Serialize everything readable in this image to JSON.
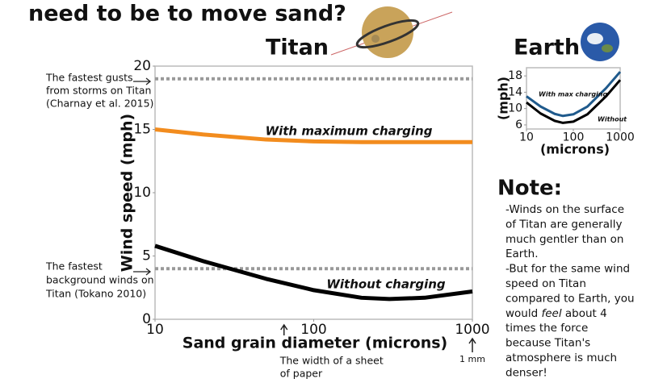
{
  "header": {
    "title": "need to be to move sand?",
    "titan_label": "Titan",
    "earth_label": "Earth"
  },
  "chart_data": [
    {
      "type": "line",
      "xscale": "log",
      "x": [
        10,
        20,
        50,
        100,
        200,
        300,
        500,
        1000
      ],
      "xlim": [
        10,
        1000
      ],
      "xticks": [
        10,
        100,
        1000
      ],
      "ylim": [
        0,
        20
      ],
      "yticks": [
        0,
        5,
        10,
        15,
        20
      ],
      "x_label": "Sand grain diameter (microns)",
      "y_label": "Wind speed (mph)",
      "series": [
        {
          "name": "With maximum charging",
          "color": "#f28c1e",
          "values": [
            15.0,
            14.6,
            14.2,
            14.05,
            14.0,
            14.0,
            14.0,
            14.0
          ]
        },
        {
          "name": "Without charging",
          "color": "#000000",
          "values": [
            5.8,
            4.6,
            3.2,
            2.3,
            1.7,
            1.6,
            1.7,
            2.2
          ]
        }
      ],
      "reference_lines": [
        {
          "value": 19,
          "label": [
            "The fastest gusts",
            "from storms on Titan",
            "(Charnay et al. 2015)"
          ]
        },
        {
          "value": 4,
          "label": [
            "The fastest",
            "background winds on",
            "Titan (Tokano 2010)"
          ]
        }
      ],
      "x_markers": [
        {
          "value": 65,
          "label": [
            "The width of a sheet",
            "of paper"
          ]
        },
        {
          "value": 1000,
          "label": [
            "1 mm"
          ]
        }
      ]
    },
    {
      "type": "line",
      "xscale": "log",
      "x": [
        10,
        20,
        40,
        60,
        100,
        200,
        500,
        1000
      ],
      "xlim": [
        10,
        1000
      ],
      "xticks": [
        10,
        100,
        1000
      ],
      "ylim": [
        5,
        20
      ],
      "yticks": [
        6,
        10,
        14,
        18
      ],
      "x_label": "(microns)",
      "y_label": "(mph)",
      "series": [
        {
          "name": "With max charging",
          "color": "#1f5a8c",
          "values": [
            13.0,
            10.5,
            8.7,
            8.2,
            8.6,
            10.5,
            15.0,
            19.0
          ]
        },
        {
          "name": "Without",
          "color": "#000000",
          "values": [
            11.5,
            8.8,
            7.0,
            6.5,
            6.8,
            8.6,
            13.0,
            17.0
          ]
        }
      ]
    }
  ],
  "note": {
    "title": "Note:",
    "lines": [
      [
        "-Winds on the surface"
      ],
      [
        "of Titan are generally"
      ],
      [
        "much gentler than on"
      ],
      [
        "Earth."
      ],
      [
        "-But for the same wind"
      ],
      [
        "speed on Titan"
      ],
      [
        "compared to Earth, you"
      ],
      [
        "would ",
        "feel",
        " about 4"
      ],
      [
        "times the force"
      ],
      [
        "because Titan's"
      ],
      [
        "atmosphere is much"
      ],
      [
        "denser!"
      ]
    ]
  }
}
